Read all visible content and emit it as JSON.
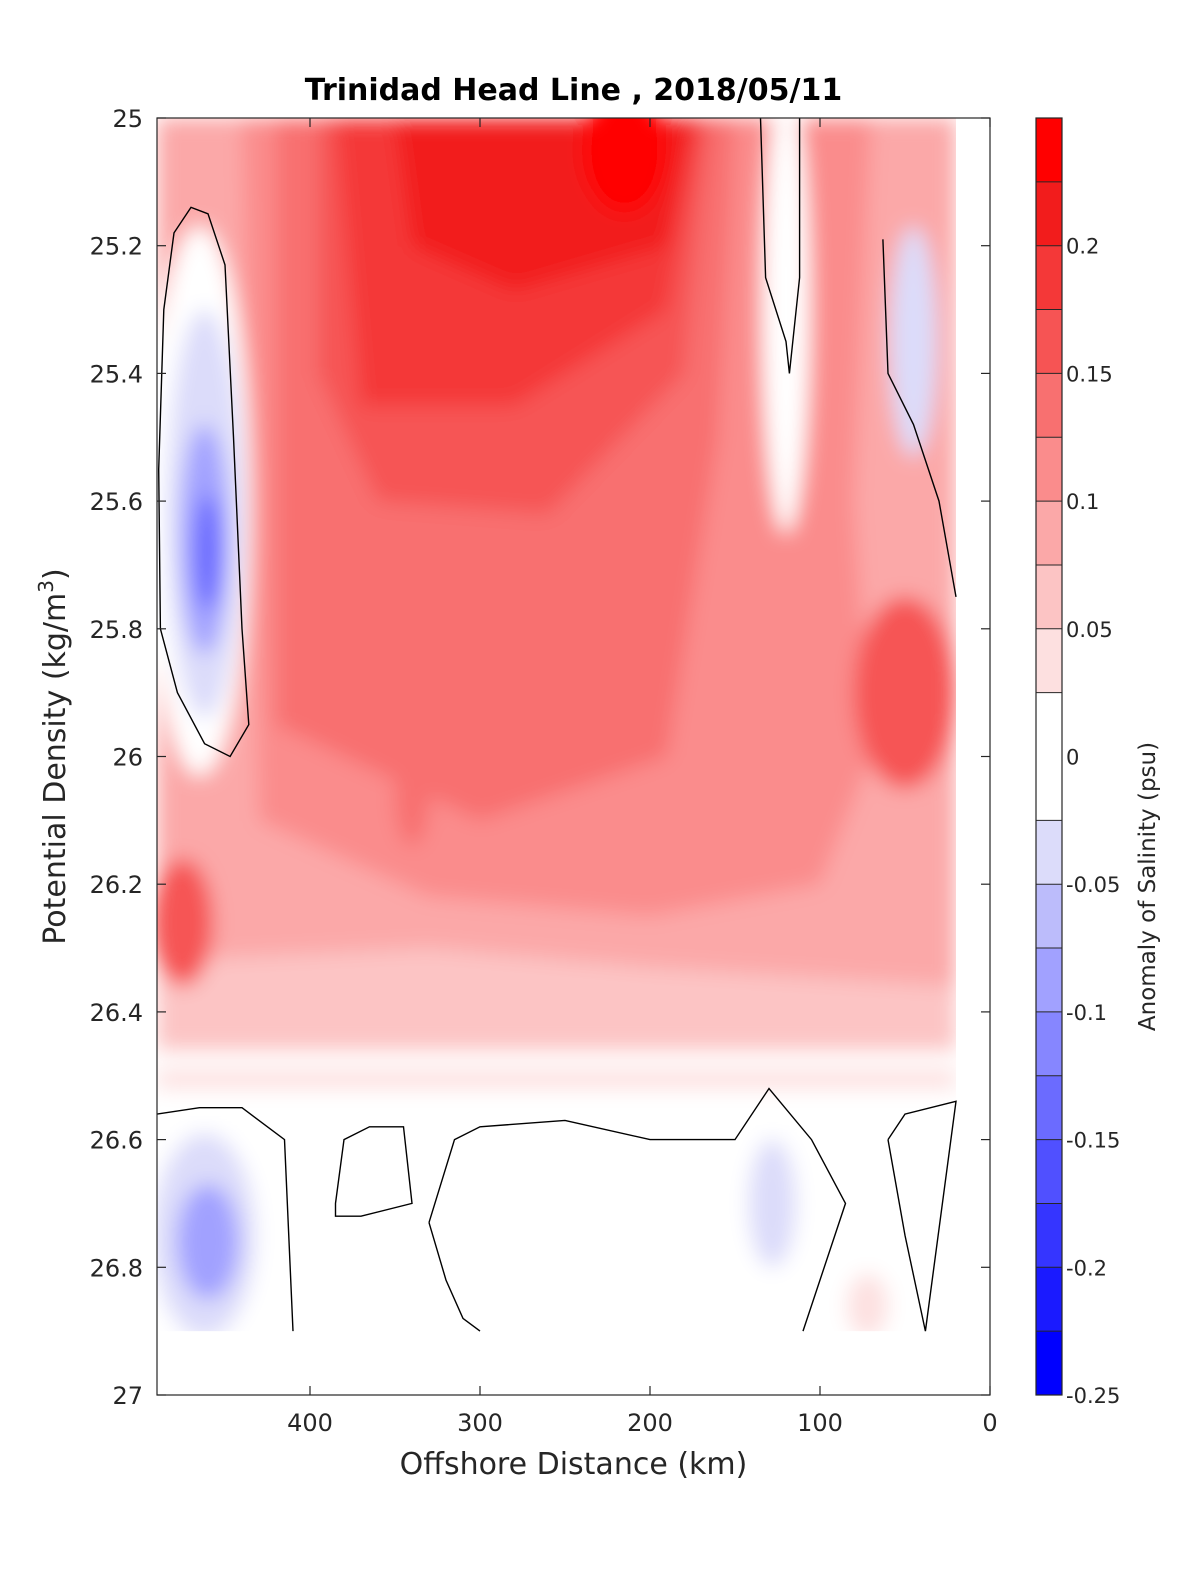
{
  "chart_data": {
    "type": "heatmap",
    "title": "Trinidad Head Line , 2018/05/11",
    "xlabel": "Offshore Distance (km)",
    "ylabel_main": "Potential Density (kg/m",
    "ylabel_sup": "3",
    "ylabel_close": ")",
    "colorbar_label": "Anomaly of Salinity (psu)",
    "xlim": [
      490,
      0
    ],
    "ylim": [
      25,
      27
    ],
    "x_reversed": true,
    "y_reversed": true,
    "x_ticks": [
      {
        "value": 400,
        "label": "400"
      },
      {
        "value": 300,
        "label": "300"
      },
      {
        "value": 200,
        "label": "200"
      },
      {
        "value": 100,
        "label": "100"
      },
      {
        "value": 0,
        "label": "0"
      }
    ],
    "y_ticks": [
      {
        "value": 25.0,
        "label": "25"
      },
      {
        "value": 25.2,
        "label": "25.2"
      },
      {
        "value": 25.4,
        "label": "25.4"
      },
      {
        "value": 25.6,
        "label": "25.6"
      },
      {
        "value": 25.8,
        "label": "25.8"
      },
      {
        "value": 26.0,
        "label": "26"
      },
      {
        "value": 26.2,
        "label": "26.2"
      },
      {
        "value": 26.4,
        "label": "26.4"
      },
      {
        "value": 26.6,
        "label": "26.6"
      },
      {
        "value": 26.8,
        "label": "26.8"
      },
      {
        "value": 27.0,
        "label": "27"
      }
    ],
    "colorbar": {
      "clim": [
        -0.25,
        0.25
      ],
      "levels": [
        -0.25,
        -0.225,
        -0.2,
        -0.175,
        -0.15,
        -0.125,
        -0.1,
        -0.075,
        -0.05,
        -0.025,
        0.025,
        0.05,
        0.075,
        0.1,
        0.125,
        0.15,
        0.175,
        0.2,
        0.225,
        0.25
      ],
      "colors": [
        "#0000ff",
        "#1a1aff",
        "#3535ff",
        "#5050ff",
        "#6b6bff",
        "#8686ff",
        "#a1a1ff",
        "#bcbcfb",
        "#dcdcfa",
        "#ffffff",
        "#fde0e0",
        "#fcc4c4",
        "#fba8a8",
        "#fa8c8c",
        "#f87070",
        "#f65454",
        "#f43838",
        "#f21c1c",
        "#ff0000"
      ],
      "ticks": [
        {
          "value": 0.2,
          "label": "0.2"
        },
        {
          "value": 0.15,
          "label": "0.15"
        },
        {
          "value": 0.1,
          "label": "0.1"
        },
        {
          "value": 0.05,
          "label": "0.05"
        },
        {
          "value": 0,
          "label": "0"
        },
        {
          "value": -0.05,
          "label": "-0.05"
        },
        {
          "value": -0.1,
          "label": "-0.1"
        },
        {
          "value": -0.15,
          "label": "-0.15"
        },
        {
          "value": -0.2,
          "label": "-0.2"
        },
        {
          "value": -0.25,
          "label": "-0.25"
        }
      ]
    },
    "data_coverage": {
      "x": [
        20,
        490
      ],
      "y": [
        25.0,
        26.9
      ]
    },
    "features": [
      {
        "name": "surface saline core",
        "x": 235,
        "y": 25.1,
        "value": 0.24
      },
      {
        "name": "offshore fresh core",
        "x": 462,
        "y": 25.67,
        "value": -0.13
      },
      {
        "name": "fresh core deep",
        "x": 460,
        "y": 26.75,
        "value": -0.075
      },
      {
        "name": "nearshore fresh tongue",
        "x": 42,
        "y": 25.35,
        "value": -0.06
      },
      {
        "name": "mid saline patch",
        "x": 50,
        "y": 25.9,
        "value": 0.15
      },
      {
        "name": "deep fresh patch",
        "x": 128,
        "y": 26.7,
        "value": -0.05
      },
      {
        "name": "offshore saline lens",
        "x": 475,
        "y": 26.26,
        "value": 0.15
      }
    ],
    "grid": false
  }
}
